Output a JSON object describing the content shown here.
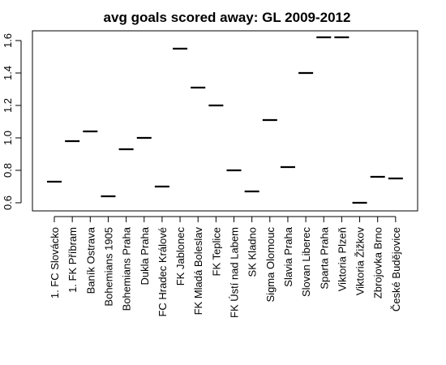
{
  "chart_data": {
    "type": "scatter",
    "title": "avg goals scored away: GL 2009-2012",
    "xlabel": "",
    "ylabel": "",
    "ylim": [
      0.6,
      1.6
    ],
    "yticks": [
      "0.6",
      "0.8",
      "1.0",
      "1.2",
      "1.4",
      "1.6"
    ],
    "marker": "horizontal-dash",
    "grid": false,
    "categories": [
      "1. FC Slovácko",
      "1. FK Příbram",
      "Baník Ostrava",
      "Bohemians 1905",
      "Bohemians Praha",
      "Dukla Praha",
      "FC Hradec Králové",
      "FK Jablonec",
      "FK Mladá Boleslav",
      "FK Teplice",
      "FK Ústí nad Labem",
      "SK Kladno",
      "Sigma Olomouc",
      "Slavia Praha",
      "Slovan Liberec",
      "Sparta Praha",
      "Viktoria Plzeň",
      "Viktoria Žižkov",
      "Zbrojovka Brno",
      "České Budějovice"
    ],
    "values": [
      0.73,
      0.98,
      1.04,
      0.64,
      0.93,
      1.0,
      0.7,
      1.55,
      1.31,
      1.2,
      0.8,
      0.67,
      1.11,
      0.82,
      1.4,
      1.62,
      1.62,
      0.6,
      0.76,
      0.75
    ],
    "colors": {
      "mark": "#000000",
      "axis": "#000000",
      "background": "#ffffff"
    }
  }
}
